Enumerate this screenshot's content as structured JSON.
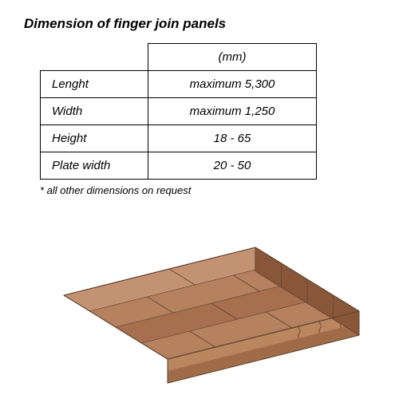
{
  "title": "Dimension of finger join panels",
  "footnote": "* all other dimensions on request",
  "table": {
    "unit_header": "(mm)",
    "rows": [
      {
        "label": "Lenght",
        "value": "maximum 5,300"
      },
      {
        "label": "Width",
        "value": "maximum 1,250"
      },
      {
        "label": "Height",
        "value": "18 - 65"
      },
      {
        "label": "Plate width",
        "value": "20 - 50"
      }
    ]
  },
  "panel_diagram": {
    "type": "3d-panel",
    "colors": {
      "top_light": "#c39272",
      "top_mid": "#b5815f",
      "top_dark": "#a6704e",
      "side_light": "#9d6847",
      "side_dark": "#8a5639",
      "front_light": "#b9865f",
      "front_dark": "#a06c48",
      "edge": "#5e4330",
      "finger": "#6a4a34"
    }
  }
}
